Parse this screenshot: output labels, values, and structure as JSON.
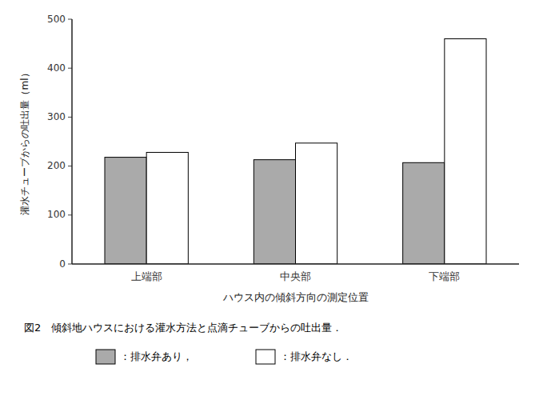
{
  "chart_data": {
    "type": "bar",
    "title": "図2　傾斜地ハウスにおける灌水方法と点滴チューブからの吐出量．",
    "xlabel": "ハウス内の傾斜方向の測定位置",
    "ylabel": "灌水チューブからの吐出量（ml）",
    "categories": [
      "上端部",
      "中央部",
      "下端部"
    ],
    "series": [
      {
        "name": "：排水弁あり，",
        "color": "#aaaaaa",
        "values": [
          218,
          213,
          207
        ]
      },
      {
        "name": "：排水弁なし．",
        "color": "#ffffff",
        "values": [
          228,
          247,
          460
        ]
      }
    ],
    "ylim": [
      0,
      500
    ],
    "yticks": [
      0,
      100,
      200,
      300,
      400,
      500
    ],
    "grid": false,
    "legend": "bottom"
  }
}
